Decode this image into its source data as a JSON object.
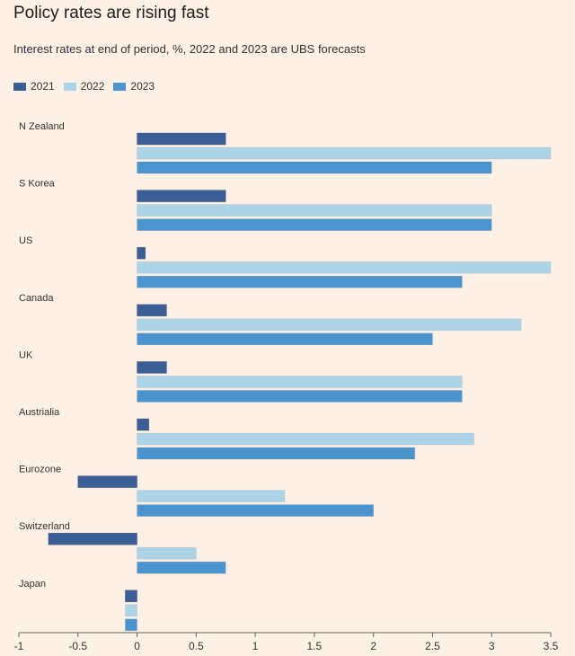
{
  "title": "Policy rates are rising fast",
  "subtitle": "Interest rates at end of period, %, 2022 and 2023 are UBS forecasts",
  "colors": {
    "background": "#fdf1e5",
    "series_2021": "#3a5e95",
    "series_2022": "#acd4e6",
    "series_2023": "#4b94ce",
    "axis": "#66605c",
    "text": "#33302e"
  },
  "chart_data": {
    "type": "bar",
    "orientation": "horizontal",
    "title": "Policy rates are rising fast",
    "subtitle": "Interest rates at end of period, %, 2022 and 2023 are UBS forecasts",
    "xlabel": "",
    "ylabel": "",
    "xlim": [
      -1,
      3.5
    ],
    "xticks": [
      -1,
      -0.5,
      0,
      0.5,
      1,
      1.5,
      2,
      2.5,
      3,
      3.5
    ],
    "xtick_labels": [
      "-1",
      "-0.5",
      "0",
      "0.5",
      "1",
      "1.5",
      "2",
      "2.5",
      "3",
      "3.5"
    ],
    "legend_position": "top-left",
    "categories": [
      "N Zealand",
      "S Korea",
      "US",
      "Canada",
      "UK",
      "Austrialia",
      "Eurozone",
      "Switzerland",
      "Japan"
    ],
    "series": [
      {
        "name": "2021",
        "values": [
          0.75,
          0.75,
          0.07,
          0.25,
          0.25,
          0.1,
          -0.5,
          -0.75,
          -0.1
        ]
      },
      {
        "name": "2022",
        "values": [
          3.5,
          3.0,
          3.5,
          3.25,
          2.75,
          2.85,
          1.25,
          0.5,
          -0.1
        ]
      },
      {
        "name": "2023",
        "values": [
          3.0,
          3.0,
          2.75,
          2.5,
          2.75,
          2.35,
          2.0,
          0.75,
          -0.1
        ]
      }
    ]
  }
}
